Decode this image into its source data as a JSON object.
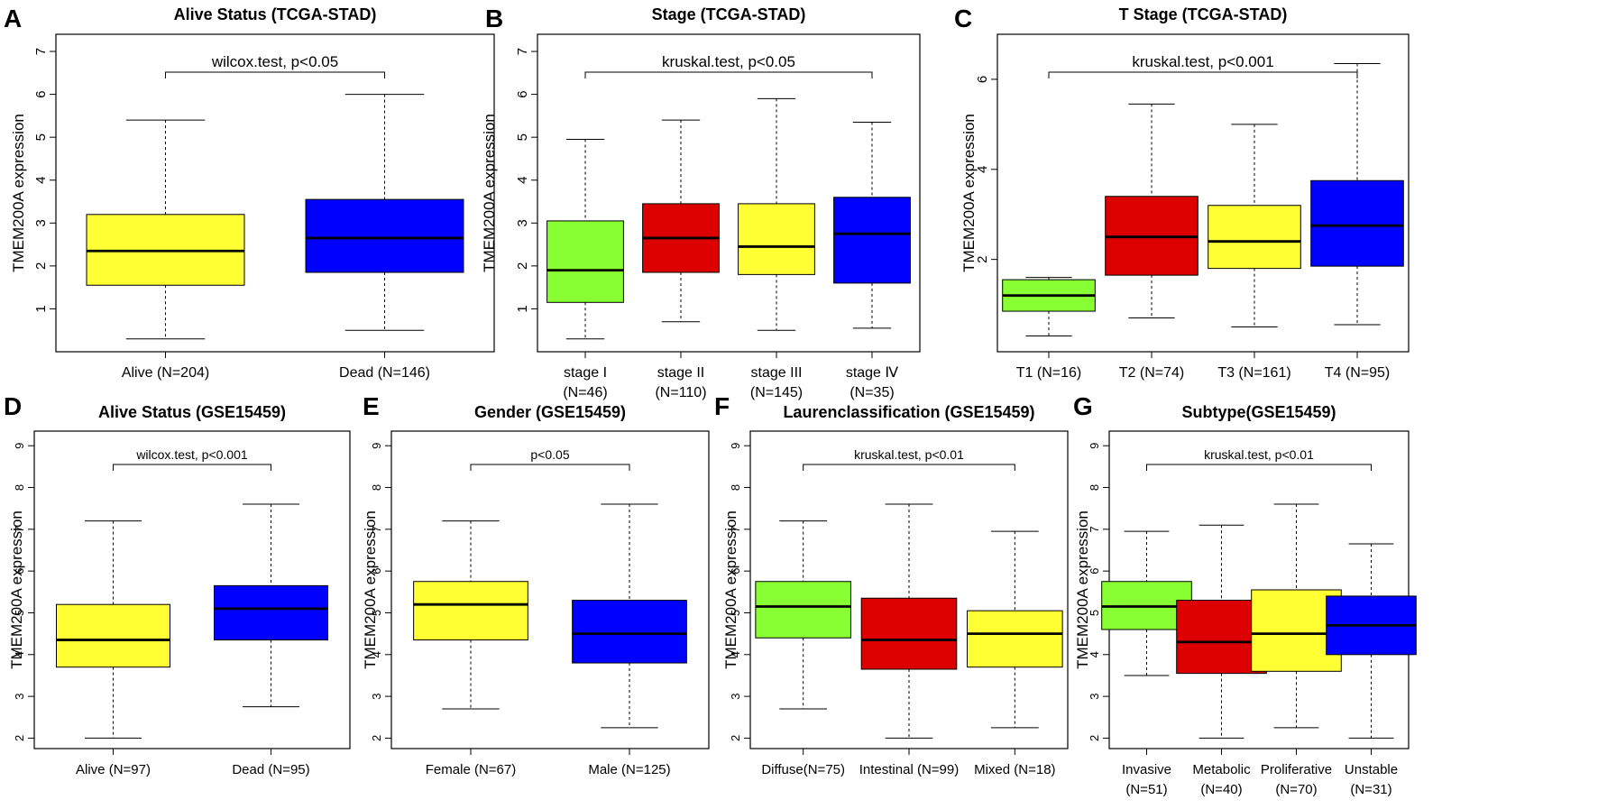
{
  "chart_data": [
    {
      "panel": "A",
      "type": "boxplot",
      "title": "Alive Status (TCGA-STAD)",
      "ylabel": "TMEM200A expression",
      "ylim": [
        0,
        7.4
      ],
      "yticks": [
        1,
        2,
        3,
        4,
        5,
        6,
        7
      ],
      "test": "wilcox.test, p<0.05",
      "test_groups": [
        1,
        2
      ],
      "groups": [
        {
          "label": [
            "Alive   (N=204)"
          ],
          "color": "#ffff33",
          "min": 0.3,
          "q1": 1.55,
          "median": 2.35,
          "q3": 3.2,
          "max": 5.4
        },
        {
          "label": [
            "Dead (N=146)"
          ],
          "color": "#0000ff",
          "min": 0.5,
          "q1": 1.85,
          "median": 2.65,
          "q3": 3.55,
          "max": 6.0
        }
      ]
    },
    {
      "panel": "B",
      "type": "boxplot",
      "title": "Stage (TCGA-STAD)",
      "ylabel": "TMEM200A expression",
      "ylim": [
        0,
        7.4
      ],
      "yticks": [
        1,
        2,
        3,
        4,
        5,
        6,
        7
      ],
      "test": "kruskal.test, p<0.05",
      "test_groups": [
        1,
        4
      ],
      "groups": [
        {
          "label": [
            "stage I",
            "(N=46)"
          ],
          "color": "#88ff33",
          "min": 0.3,
          "q1": 1.15,
          "median": 1.9,
          "q3": 3.05,
          "max": 4.95
        },
        {
          "label": [
            "stage  II",
            "(N=110)"
          ],
          "color": "#dd0000",
          "min": 0.7,
          "q1": 1.85,
          "median": 2.65,
          "q3": 3.45,
          "max": 5.4
        },
        {
          "label": [
            "stage III",
            "(N=145)"
          ],
          "color": "#ffff33",
          "min": 0.5,
          "q1": 1.8,
          "median": 2.45,
          "q3": 3.45,
          "max": 5.9
        },
        {
          "label": [
            "stage Ⅳ",
            "(N=35)"
          ],
          "color": "#0000ff",
          "min": 0.55,
          "q1": 1.6,
          "median": 2.75,
          "q3": 3.6,
          "max": 5.35
        }
      ]
    },
    {
      "panel": "C",
      "type": "boxplot",
      "title": "T Stage (TCGA-STAD)",
      "ylabel": "TMEM200A expression",
      "ylim": [
        -0.05,
        7.0
      ],
      "yticks": [
        2,
        4,
        6
      ],
      "test": "kruskal.test, p<0.001",
      "test_groups": [
        1,
        4
      ],
      "groups": [
        {
          "label": [
            "T1 (N=16)"
          ],
          "color": "#88ff33",
          "min": 0.3,
          "q1": 0.85,
          "median": 1.2,
          "q3": 1.55,
          "max": 1.6
        },
        {
          "label": [
            "T2 (N=74)"
          ],
          "color": "#dd0000",
          "min": 0.7,
          "q1": 1.65,
          "median": 2.5,
          "q3": 3.4,
          "max": 5.45
        },
        {
          "label": [
            "T3 (N=161)"
          ],
          "color": "#ffff33",
          "min": 0.5,
          "q1": 1.8,
          "median": 2.4,
          "q3": 3.2,
          "max": 5.0
        },
        {
          "label": [
            "T4 (N=95)"
          ],
          "color": "#0000ff",
          "min": 0.55,
          "q1": 1.85,
          "median": 2.75,
          "q3": 3.75,
          "max": 6.35
        }
      ]
    },
    {
      "panel": "D",
      "type": "boxplot",
      "title": "Alive Status (GSE15459)",
      "ylabel": "TMEM200A expression",
      "ylim": [
        1.75,
        9.35
      ],
      "yticks": [
        2,
        3,
        4,
        5,
        6,
        7,
        8,
        9
      ],
      "test": "wilcox.test, p<0.001",
      "test_groups": [
        1,
        2
      ],
      "groups": [
        {
          "label": [
            "Alive (N=97)"
          ],
          "color": "#ffff33",
          "min": 2.0,
          "q1": 3.7,
          "median": 4.35,
          "q3": 5.2,
          "max": 7.2
        },
        {
          "label": [
            "Dead (N=95)"
          ],
          "color": "#0000ff",
          "min": 2.75,
          "q1": 4.35,
          "median": 5.1,
          "q3": 5.65,
          "max": 7.6
        }
      ]
    },
    {
      "panel": "E",
      "type": "boxplot",
      "title": "Gender (GSE15459)",
      "ylabel": "TMEM200A expression",
      "ylim": [
        1.75,
        9.35
      ],
      "yticks": [
        2,
        3,
        4,
        5,
        6,
        7,
        8,
        9
      ],
      "test": "p<0.05",
      "test_groups": [
        1,
        2
      ],
      "groups": [
        {
          "label": [
            "Female (N=67)"
          ],
          "color": "#ffff33",
          "min": 2.7,
          "q1": 4.35,
          "median": 5.2,
          "q3": 5.75,
          "max": 7.2
        },
        {
          "label": [
            "Male (N=125)"
          ],
          "color": "#0000ff",
          "min": 2.25,
          "q1": 3.8,
          "median": 4.5,
          "q3": 5.3,
          "max": 7.6
        }
      ]
    },
    {
      "panel": "F",
      "type": "boxplot",
      "title": "Laurenclassification (GSE15459)",
      "ylabel": "TMEM200A expression",
      "ylim": [
        1.75,
        9.35
      ],
      "yticks": [
        2,
        3,
        4,
        5,
        6,
        7,
        8,
        9
      ],
      "test": "kruskal.test, p<0.01",
      "test_groups": [
        1,
        3
      ],
      "groups": [
        {
          "label": [
            "Diffuse(N=75)"
          ],
          "color": "#88ff33",
          "min": 2.7,
          "q1": 4.4,
          "median": 5.15,
          "q3": 5.75,
          "max": 7.2
        },
        {
          "label": [
            "Intestinal (N=99)"
          ],
          "color": "#dd0000",
          "min": 2.0,
          "q1": 3.65,
          "median": 4.35,
          "q3": 5.35,
          "max": 7.6
        },
        {
          "label": [
            "Mixed (N=18)"
          ],
          "color": "#ffff33",
          "min": 2.25,
          "q1": 3.7,
          "median": 4.5,
          "q3": 5.05,
          "max": 6.95
        }
      ]
    },
    {
      "panel": "G",
      "type": "boxplot",
      "title": "Subtype(GSE15459)",
      "ylabel": "TMEM200A expression",
      "ylim": [
        1.75,
        9.35
      ],
      "yticks": [
        2,
        3,
        4,
        5,
        6,
        7,
        8,
        9
      ],
      "test": "kruskal.test, p<0.01",
      "test_groups": [
        1,
        4
      ],
      "groups": [
        {
          "label": [
            "Invasive",
            "(N=51)"
          ],
          "color": "#88ff33",
          "min": 3.5,
          "q1": 4.6,
          "median": 5.15,
          "q3": 5.75,
          "max": 6.95
        },
        {
          "label": [
            "Metabolic",
            "(N=40)"
          ],
          "color": "#dd0000",
          "min": 2.0,
          "q1": 3.55,
          "median": 4.3,
          "q3": 5.3,
          "max": 7.1
        },
        {
          "label": [
            "Proliferative",
            "(N=70)"
          ],
          "color": "#ffff33",
          "min": 2.25,
          "q1": 3.6,
          "median": 4.5,
          "q3": 5.55,
          "max": 7.6
        },
        {
          "label": [
            "Unstable",
            "(N=31)"
          ],
          "color": "#0000ff",
          "min": 2.0,
          "q1": 4.0,
          "median": 4.7,
          "q3": 5.4,
          "max": 6.65
        }
      ]
    }
  ]
}
